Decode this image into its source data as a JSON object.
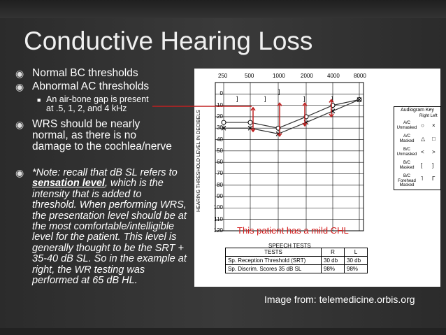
{
  "slide": {
    "title": "Conductive Hearing Loss",
    "bullets": [
      "Normal BC thresholds",
      "Abnormal AC thresholds",
      "WRS should be nearly normal, as there is no damage to the cochlea/nerve"
    ],
    "sub_bullet": "An air-bone gap is present at .5, 1, 2, and 4 kHz",
    "note_prefix": "*Note: recall that dB SL refers to ",
    "note_bold": "sensation level",
    "note_rest": ", which is the intensity that is added to threshold.  When performing WRS, the presentation level should be at the most comfortable/intelligible level for the patient.  This level is generally thought to be the SRT + 35-40 dB SL. So in the example at right, the WR testing was performed at 65 dB HL.",
    "caption": "Image from: telemedicine.orbis.org",
    "annotation": "This patient has a mild CHL",
    "bullet_symbol": "◉",
    "sub_symbol": "■"
  },
  "audiogram": {
    "y_axis_label": "HEARING THRESHOLD LEVEL IN DECIBELS",
    "frequencies": [
      "250",
      "500",
      "1000",
      "2000",
      "4000",
      "8000"
    ],
    "levels": [
      "0",
      "10",
      "20",
      "30",
      "40",
      "50",
      "60",
      "70",
      "80",
      "90",
      "100",
      "110",
      "120"
    ],
    "key": {
      "title": "Audiogram Key",
      "header": "Right  Left",
      "rows": [
        {
          "label": "A/C Unmasked",
          "right": "○",
          "left": "×"
        },
        {
          "label": "A/C Masked",
          "right": "△",
          "left": "□"
        },
        {
          "label": "B/C Unmasked",
          "right": "<",
          "left": ">"
        },
        {
          "label": "B/C Masked",
          "right": "[",
          "left": "]"
        },
        {
          "label": "B/C Forehead Masked",
          "right": "˥",
          "left": "Γ"
        }
      ]
    },
    "speech_tests": {
      "title": "SPEECH TESTS",
      "headers": [
        "TESTS",
        "R",
        "L"
      ],
      "rows": [
        [
          "Sp. Reception Threshold (SRT)",
          "30 db",
          "30 db"
        ],
        [
          "Sp. Discrim. Scores      35 dB SL",
          "98%",
          "98%"
        ]
      ]
    }
  },
  "chart_data": {
    "type": "line",
    "x": [
      250,
      500,
      1000,
      2000,
      4000,
      8000
    ],
    "series": [
      {
        "values": [
          25,
          25,
          30,
          20,
          10,
          5
        ]
      },
      {
        "values": [
          30,
          30,
          35,
          25,
          15,
          5
        ]
      }
    ],
    "ylim": [
      -10,
      120
    ]
  }
}
